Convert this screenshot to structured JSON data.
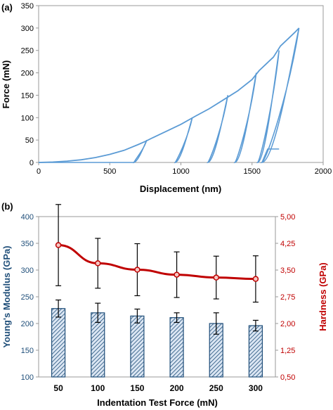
{
  "chart_data": [
    {
      "panel_label": "(a)",
      "type": "line",
      "xlabel": "Displacement (nm)",
      "ylabel": "Force (mN)",
      "xlim": [
        0,
        2000
      ],
      "ylim": [
        0,
        350
      ],
      "xticks": [
        "0",
        "500",
        "1000",
        "1500",
        "2000"
      ],
      "yticks": [
        "0",
        "50",
        "100",
        "150",
        "200",
        "250",
        "300",
        "350"
      ],
      "color": "#5b9bd5",
      "grid": false,
      "loading_curve": [
        [
          0,
          0
        ],
        [
          100,
          1
        ],
        [
          200,
          3
        ],
        [
          300,
          6
        ],
        [
          400,
          11
        ],
        [
          500,
          18
        ],
        [
          600,
          27
        ],
        [
          700,
          40
        ],
        [
          750,
          47
        ],
        [
          800,
          55
        ],
        [
          900,
          70
        ],
        [
          1000,
          85
        ],
        [
          1100,
          103
        ],
        [
          1200,
          120
        ],
        [
          1300,
          140
        ],
        [
          1400,
          160
        ],
        [
          1500,
          185
        ],
        [
          1550,
          205
        ],
        [
          1600,
          220
        ],
        [
          1650,
          235
        ],
        [
          1700,
          260
        ],
        [
          1750,
          275
        ],
        [
          1800,
          290
        ],
        [
          1830,
          300
        ]
      ],
      "cycles": [
        {
          "peak_force": 50,
          "peak_disp": 760,
          "final_disp": 670
        },
        {
          "peak_force": 100,
          "peak_disp": 1080,
          "final_disp": 960
        },
        {
          "peak_force": 150,
          "peak_disp": 1330,
          "final_disp": 1190
        },
        {
          "peak_force": 200,
          "peak_disp": 1530,
          "final_disp": 1380
        },
        {
          "peak_force": 250,
          "peak_disp": 1690,
          "final_disp": 1540
        },
        {
          "peak_force": 300,
          "peak_disp": 1830,
          "final_disp": 1570
        }
      ]
    },
    {
      "panel_label": "(b)",
      "type": "bar+line",
      "xlabel": "Indentation Test Force (mN)",
      "ylabel_left": "Young's Modulus (GPa)",
      "ylabel_right": "Hardness (GPa)",
      "categories": [
        "50",
        "100",
        "150",
        "200",
        "250",
        "300"
      ],
      "ylim_left": [
        100,
        400
      ],
      "yticks_left": [
        "100",
        "150",
        "200",
        "250",
        "300",
        "350",
        "400"
      ],
      "ylim_right": [
        0.5,
        5.0
      ],
      "yticks_right": [
        "0,50",
        "1,25",
        "2,00",
        "2,75",
        "3,50",
        "4,25",
        "5,00"
      ],
      "left_axis_color": "#1f4e79",
      "right_axis_color": "#c00000",
      "series": [
        {
          "name": "Young's Modulus",
          "axis": "left",
          "kind": "bar",
          "values": [
            228,
            220,
            214,
            211,
            200,
            196
          ],
          "errors": [
            16,
            18,
            13,
            9,
            20,
            10
          ],
          "color": "#1f4e79"
        },
        {
          "name": "Hardness",
          "axis": "right",
          "kind": "line",
          "values": [
            4.2,
            3.69,
            3.51,
            3.37,
            3.29,
            3.25
          ],
          "errors": [
            1.14,
            0.7,
            0.73,
            0.64,
            0.6,
            0.65
          ],
          "color": "#c00000"
        }
      ]
    }
  ]
}
